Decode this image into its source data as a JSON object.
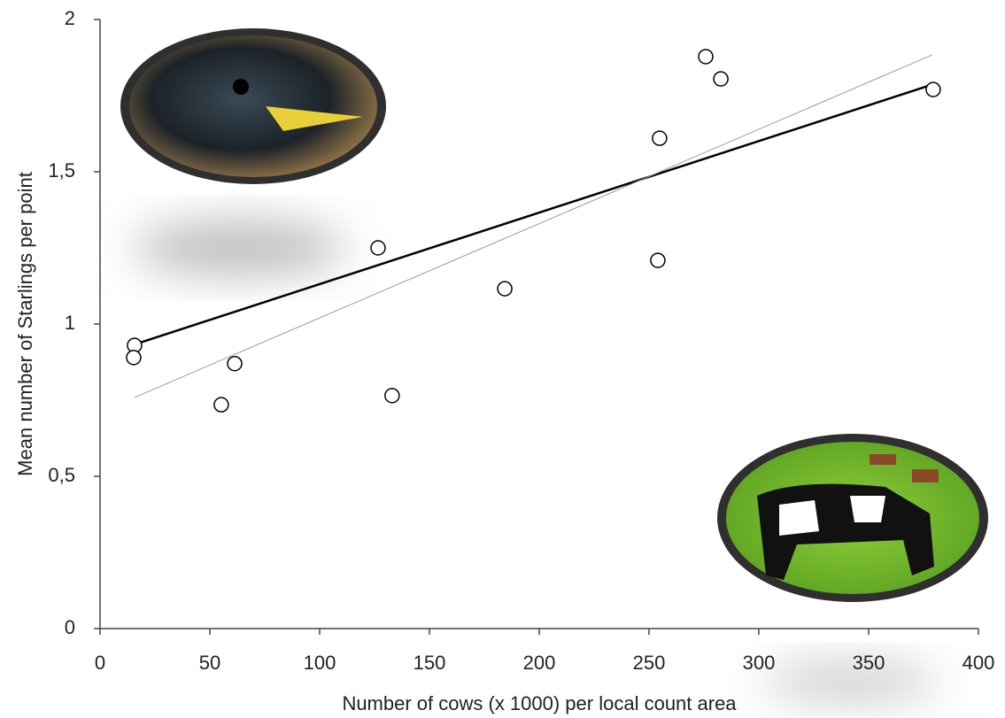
{
  "chart_data": {
    "type": "scatter",
    "x_label": "Number of cows (x 1000) per local count area",
    "y_label": "Mean number of Starlings per point",
    "series": [
      {
        "color": "#000000",
        "x": [
          15.7,
          15.3,
          61.3,
          55.2,
          126.6,
          133,
          184.3,
          254,
          254.8,
          275.8,
          282.7,
          379.4
        ],
        "values": [
          0.93,
          0.89,
          0.87,
          0.735,
          1.25,
          0.765,
          1.116,
          1.209,
          1.61,
          1.878,
          1.805,
          1.77
        ]
      }
    ],
    "trendlines": [
      {
        "color": "#000000",
        "x": [
          15.7,
          380.6
        ],
        "values": [
          0.933,
          1.79
        ]
      },
      {
        "color": "#999999",
        "x": [
          15.7,
          379
        ],
        "values": [
          0.759,
          1.884
        ]
      }
    ],
    "xlim": [
      0,
      400
    ],
    "xticks": [
      0,
      50,
      100,
      150,
      200,
      250,
      300,
      350,
      400
    ],
    "ylim": [
      0,
      2
    ],
    "yticks": [
      0,
      {
        "value": 0.5,
        "label": "0,5"
      },
      1,
      {
        "value": 1.5,
        "label": "1,5"
      },
      2
    ]
  }
}
